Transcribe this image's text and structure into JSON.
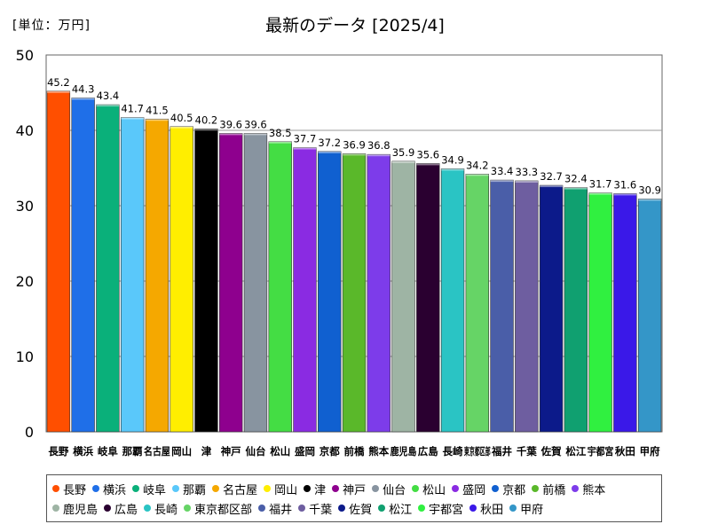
{
  "chart_data": {
    "type": "bar",
    "title": "最新のデータ [2025/4]",
    "unit_label": "[単位：万円]",
    "ylim": [
      0,
      50
    ],
    "yticks": [
      0,
      10,
      20,
      30,
      40,
      50
    ],
    "grid": true,
    "legend_position": "bottom",
    "categories": [
      "長野",
      "横浜",
      "岐阜",
      "那覇",
      "名古屋",
      "岡山",
      "津",
      "神戸",
      "仙台",
      "松山",
      "盛岡",
      "京都",
      "前橋",
      "熊本",
      "鹿児島",
      "広島",
      "長崎",
      "東京都区部",
      "福井",
      "千葉",
      "佐賀",
      "松江",
      "宇都宮",
      "秋田",
      "甲府"
    ],
    "values": [
      45.2,
      44.3,
      43.4,
      41.7,
      41.5,
      40.5,
      40.2,
      39.6,
      39.6,
      38.5,
      37.7,
      37.2,
      36.9,
      36.8,
      35.9,
      35.6,
      34.9,
      34.2,
      33.4,
      33.3,
      32.7,
      32.4,
      31.7,
      31.6,
      30.9
    ],
    "value_labels": [
      "45.2",
      "44.3",
      "43.4",
      "41.7",
      "41.5",
      "40.5",
      "40.2",
      "39.6",
      "39.6",
      "38.5",
      "37.7",
      "37.2",
      "36.9",
      "36.8",
      "35.9",
      "35.6",
      "34.9",
      "34.2",
      "33.4",
      "33.3",
      "32.7",
      "32.4",
      "31.7",
      "31.6",
      "30.9"
    ],
    "colors": [
      "#ff4f00",
      "#1f6fe8",
      "#0ab07a",
      "#5ac8fa",
      "#f5a800",
      "#ffee00",
      "#000000",
      "#8e008e",
      "#8894a0",
      "#44dd44",
      "#8a2be2",
      "#1060d0",
      "#5ab82a",
      "#7d3cea",
      "#9eb4a4",
      "#2a0030",
      "#2ac4c4",
      "#66d466",
      "#4a5ea8",
      "#6e5ea0",
      "#0c1a8a",
      "#10a070",
      "#30f040",
      "#3a18e8",
      "#3496c8"
    ]
  }
}
